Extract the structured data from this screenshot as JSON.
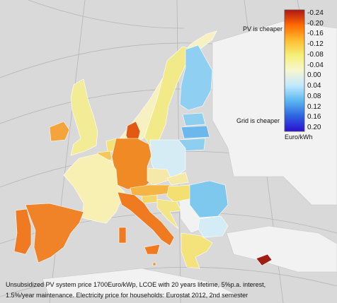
{
  "map": {
    "background_color": "#d9d9d9",
    "outside_land_color": "#f2f2f2",
    "graticule_color": "#b5b5b5"
  },
  "annotations": {
    "pv_cheaper": "PV is cheaper",
    "grid_cheaper": "Grid is cheaper"
  },
  "colorbar": {
    "unit_label": "Euro/kWh",
    "ticks": [
      "-0.24",
      "-0.20",
      "-0.16",
      "-0.12",
      "-0.08",
      "-0.04",
      "0.00",
      "0.04",
      "0.08",
      "0.12",
      "0.16",
      "0.20"
    ],
    "range": [
      -0.24,
      0.2
    ],
    "gradient": [
      "#b01515",
      "#ff6a00",
      "#ffbd30",
      "#f5f07a",
      "#f7f7d0",
      "#bfe8ff",
      "#59b6ef",
      "#2d63e0",
      "#2a10d0"
    ]
  },
  "caption": {
    "line1": "Unsubsidized PV system price 1700Euro/kWp, LCOE with 20 years lifetime, 5%p.a. interest,",
    "line2": "1.5%/year maintenance. Electricity price for households: Eurostat 2012, 2nd semester"
  },
  "regions": [
    {
      "name": "finland",
      "color": "#8fd0f2"
    },
    {
      "name": "sweden",
      "color": "#f2ea88"
    },
    {
      "name": "norway",
      "color": "#f7f0c0"
    },
    {
      "name": "denmark",
      "color": "#e05a14"
    },
    {
      "name": "estonia",
      "color": "#8ecff0"
    },
    {
      "name": "latvia",
      "color": "#6cb8ec"
    },
    {
      "name": "lithuania",
      "color": "#8ecff0"
    },
    {
      "name": "poland",
      "color": "#d6ecf5"
    },
    {
      "name": "germany",
      "color": "#f08a25"
    },
    {
      "name": "netherlands",
      "color": "#f3e27a"
    },
    {
      "name": "belgium",
      "color": "#f5c85a"
    },
    {
      "name": "luxembourg",
      "color": "#f6e89a"
    },
    {
      "name": "france",
      "color": "#f7f0b2"
    },
    {
      "name": "united-kingdom",
      "color": "#f2ec96"
    },
    {
      "name": "ireland",
      "color": "#f5a43c"
    },
    {
      "name": "spain",
      "color": "#f08228"
    },
    {
      "name": "portugal",
      "color": "#ef7a22"
    },
    {
      "name": "italy",
      "color": "#f07a20"
    },
    {
      "name": "austria",
      "color": "#f4b446"
    },
    {
      "name": "czechia",
      "color": "#f5e8a8"
    },
    {
      "name": "slovakia",
      "color": "#f5eaa5"
    },
    {
      "name": "hungary",
      "color": "#f4e070"
    },
    {
      "name": "slovenia",
      "color": "#f5d66a"
    },
    {
      "name": "croatia",
      "color": "#f3e486"
    },
    {
      "name": "romania",
      "color": "#7ec8ee"
    },
    {
      "name": "bulgaria",
      "color": "#d4ecf6"
    },
    {
      "name": "greece",
      "color": "#f4e27a"
    },
    {
      "name": "cyprus",
      "color": "#a11c12"
    },
    {
      "name": "malta",
      "color": "#f09030"
    }
  ]
}
